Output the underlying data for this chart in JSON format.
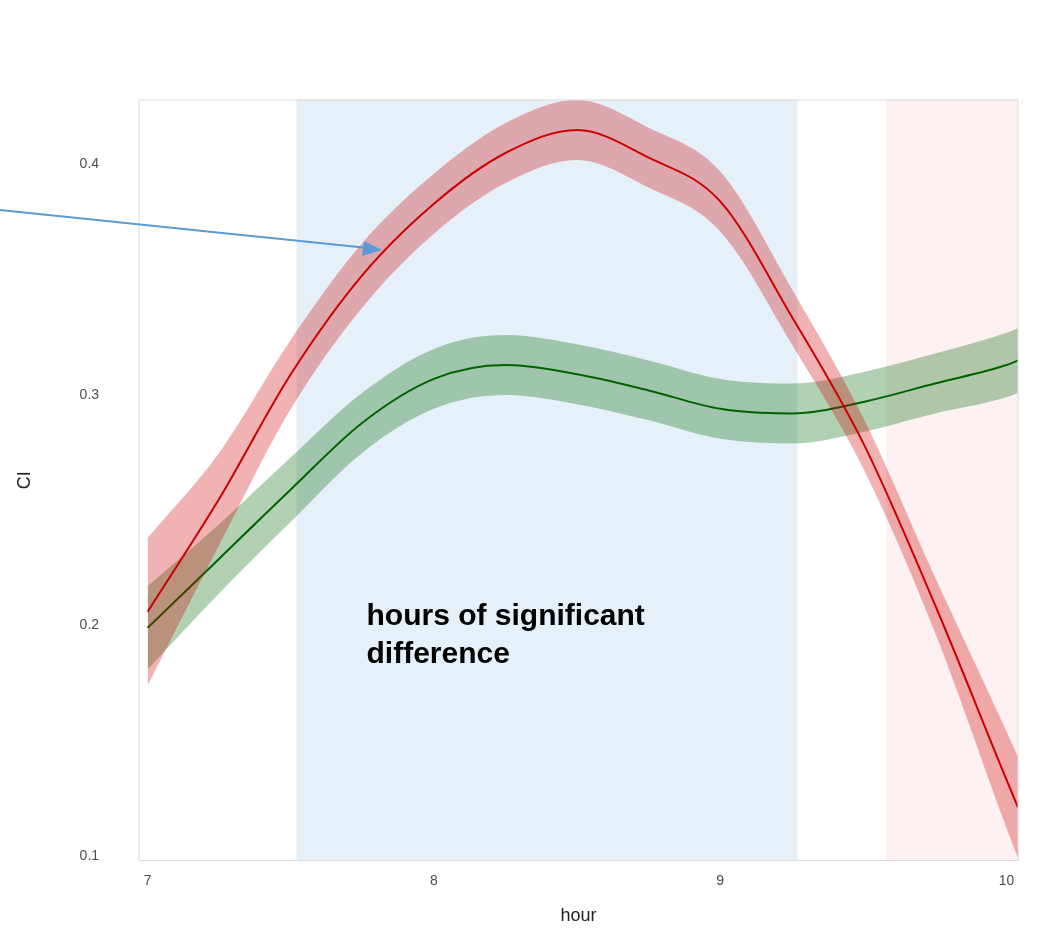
{
  "chart_data": {
    "type": "line",
    "xlabel": "hour",
    "ylabel": "CI",
    "xlim": [
      6.97,
      10.04
    ],
    "ylim": [
      0.098,
      0.428
    ],
    "xticks": [
      7,
      8,
      9,
      10
    ],
    "yticks": [
      0.1,
      0.2,
      0.3,
      0.4
    ],
    "grid": false,
    "legend": false,
    "marker": "none",
    "line_style": "solid",
    "series": [
      {
        "color": "#cc0000",
        "x": [
          7,
          7.25,
          7.5,
          7.75,
          8,
          8.25,
          8.5,
          8.75,
          9,
          9.25,
          9.5,
          9.75,
          10,
          10.04
        ],
        "values": [
          0.206,
          0.255,
          0.309,
          0.352,
          0.383,
          0.405,
          0.415,
          0.403,
          0.384,
          0.334,
          0.279,
          0.209,
          0.133,
          0.121
        ],
        "lower": [
          0.174,
          0.235,
          0.294,
          0.338,
          0.37,
          0.392,
          0.402,
          0.39,
          0.371,
          0.322,
          0.268,
          0.197,
          0.112,
          0.099
        ],
        "upper": [
          0.238,
          0.275,
          0.324,
          0.366,
          0.396,
          0.418,
          0.428,
          0.416,
          0.397,
          0.346,
          0.29,
          0.221,
          0.154,
          0.143
        ]
      },
      {
        "color": "#006400",
        "x": [
          7,
          7.25,
          7.5,
          7.75,
          8,
          8.25,
          8.5,
          8.75,
          9,
          9.25,
          9.5,
          9.75,
          10,
          10.04
        ],
        "values": [
          0.199,
          0.229,
          0.259,
          0.288,
          0.307,
          0.313,
          0.309,
          0.302,
          0.294,
          0.292,
          0.297,
          0.305,
          0.313,
          0.315
        ],
        "lower": [
          0.181,
          0.214,
          0.245,
          0.275,
          0.294,
          0.3,
          0.296,
          0.289,
          0.281,
          0.279,
          0.284,
          0.292,
          0.299,
          0.301
        ],
        "upper": [
          0.217,
          0.244,
          0.273,
          0.301,
          0.32,
          0.326,
          0.322,
          0.315,
          0.307,
          0.305,
          0.31,
          0.318,
          0.327,
          0.329
        ]
      }
    ],
    "bands": [
      {
        "axis": "x",
        "from": 7.52,
        "to": 9.27,
        "color": "#e5f0f8",
        "label": "hours of significant difference"
      },
      {
        "axis": "x",
        "from": 9.58,
        "to": 10.04,
        "color": "#fdf1f1"
      }
    ]
  }
}
